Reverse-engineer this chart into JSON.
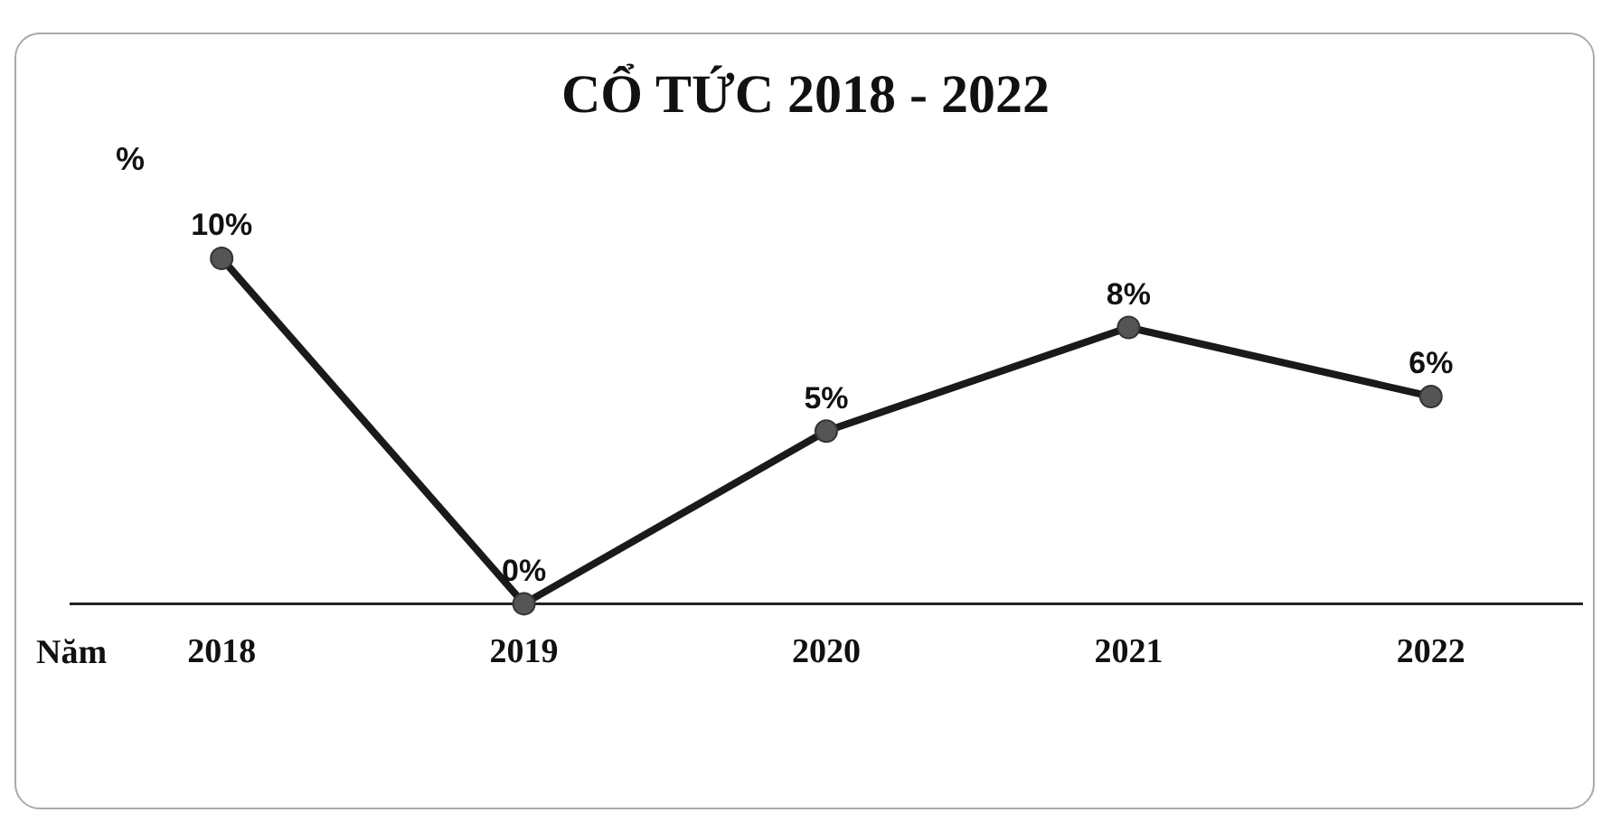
{
  "chart_data": {
    "type": "line",
    "title": "CỔ TỨC 2018 - 2022",
    "xlabel": "Năm",
    "ylabel": "%",
    "categories": [
      "2018",
      "2019",
      "2020",
      "2021",
      "2022"
    ],
    "values": [
      10,
      0,
      5,
      8,
      6
    ],
    "value_labels": [
      "10%",
      "0%",
      "5%",
      "8%",
      "6%"
    ],
    "color": "#1a1a1a",
    "marker": "circle",
    "line_style": "solid",
    "tick_labels": "x",
    "grid": false
  }
}
